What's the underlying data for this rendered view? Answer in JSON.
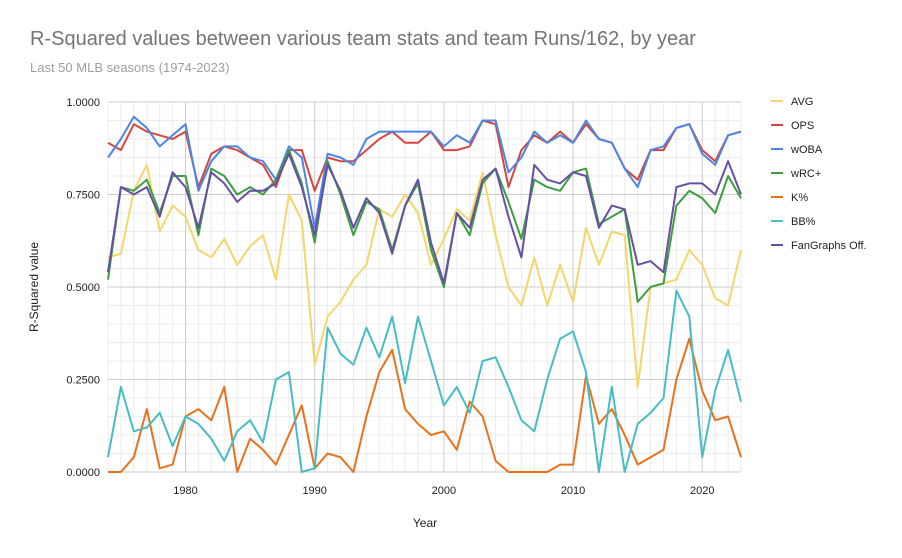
{
  "chart_data": {
    "type": "line",
    "title": "R-Squared values between various team stats and team Runs/162, by year",
    "subtitle": "Last 50 MLB seasons (1974-2023)",
    "xlabel": "Year",
    "ylabel": "R-Squared value",
    "xlim": [
      1974,
      2023
    ],
    "ylim": [
      0,
      1
    ],
    "x_ticks": [
      1980,
      1990,
      2000,
      2010,
      2020
    ],
    "y_ticks": [
      "0.0000",
      "0.2500",
      "0.5000",
      "0.7500",
      "1.0000"
    ],
    "grid": true,
    "legend_position": "right",
    "x": [
      1974,
      1975,
      1976,
      1977,
      1978,
      1979,
      1980,
      1981,
      1982,
      1983,
      1984,
      1985,
      1986,
      1987,
      1988,
      1989,
      1990,
      1991,
      1992,
      1993,
      1994,
      1995,
      1996,
      1997,
      1998,
      1999,
      2000,
      2001,
      2002,
      2003,
      2004,
      2005,
      2006,
      2007,
      2008,
      2009,
      2010,
      2011,
      2012,
      2013,
      2014,
      2015,
      2016,
      2017,
      2018,
      2019,
      2020,
      2021,
      2022,
      2023
    ],
    "series": [
      {
        "name": "AVG",
        "color": "#f4d66a",
        "values": [
          0.58,
          0.59,
          0.76,
          0.83,
          0.65,
          0.72,
          0.69,
          0.6,
          0.58,
          0.63,
          0.56,
          0.61,
          0.64,
          0.52,
          0.75,
          0.68,
          0.29,
          0.42,
          0.46,
          0.52,
          0.56,
          0.71,
          0.69,
          0.75,
          0.7,
          0.56,
          0.63,
          0.71,
          0.68,
          0.81,
          0.64,
          0.5,
          0.45,
          0.58,
          0.45,
          0.56,
          0.46,
          0.66,
          0.56,
          0.65,
          0.64,
          0.23,
          0.5,
          0.51,
          0.52,
          0.6,
          0.56,
          0.47,
          0.45,
          0.6
        ]
      },
      {
        "name": "OPS",
        "color": "#d9453d",
        "values": [
          0.89,
          0.87,
          0.94,
          0.92,
          0.91,
          0.9,
          0.92,
          0.77,
          0.86,
          0.88,
          0.87,
          0.85,
          0.83,
          0.77,
          0.87,
          0.87,
          0.76,
          0.85,
          0.84,
          0.84,
          0.87,
          0.9,
          0.92,
          0.89,
          0.89,
          0.92,
          0.87,
          0.87,
          0.88,
          0.95,
          0.94,
          0.77,
          0.87,
          0.91,
          0.89,
          0.92,
          0.89,
          0.94,
          0.9,
          0.89,
          0.82,
          0.79,
          0.87,
          0.87,
          0.93,
          0.94,
          0.87,
          0.84,
          0.91,
          0.92
        ]
      },
      {
        "name": "wOBA",
        "color": "#4a86e8",
        "values": [
          0.85,
          0.9,
          0.96,
          0.93,
          0.88,
          0.91,
          0.94,
          0.76,
          0.84,
          0.88,
          0.88,
          0.85,
          0.84,
          0.79,
          0.88,
          0.85,
          0.66,
          0.86,
          0.85,
          0.83,
          0.9,
          0.92,
          0.92,
          0.92,
          0.92,
          0.92,
          0.88,
          0.91,
          0.89,
          0.95,
          0.95,
          0.81,
          0.85,
          0.92,
          0.89,
          0.91,
          0.89,
          0.95,
          0.9,
          0.89,
          0.82,
          0.77,
          0.87,
          0.88,
          0.93,
          0.94,
          0.86,
          0.83,
          0.91,
          0.92
        ]
      },
      {
        "name": "wRC+",
        "color": "#3c9f40",
        "values": [
          0.52,
          0.77,
          0.76,
          0.79,
          0.7,
          0.8,
          0.8,
          0.64,
          0.82,
          0.8,
          0.75,
          0.77,
          0.75,
          0.79,
          0.87,
          0.78,
          0.62,
          0.84,
          0.75,
          0.64,
          0.73,
          0.71,
          0.6,
          0.72,
          0.78,
          0.6,
          0.5,
          0.7,
          0.64,
          0.78,
          0.82,
          0.73,
          0.63,
          0.79,
          0.77,
          0.76,
          0.81,
          0.82,
          0.67,
          0.69,
          0.71,
          0.46,
          0.5,
          0.51,
          0.72,
          0.76,
          0.74,
          0.7,
          0.8,
          0.74
        ]
      },
      {
        "name": "K%",
        "color": "#e8711a",
        "values": [
          0.0,
          0.0,
          0.04,
          0.17,
          0.01,
          0.02,
          0.15,
          0.17,
          0.14,
          0.23,
          0.0,
          0.09,
          0.06,
          0.02,
          0.1,
          0.18,
          0.01,
          0.05,
          0.04,
          0.0,
          0.15,
          0.27,
          0.33,
          0.17,
          0.13,
          0.1,
          0.11,
          0.06,
          0.19,
          0.15,
          0.03,
          0.0,
          0.0,
          0.0,
          0.0,
          0.02,
          0.02,
          0.26,
          0.13,
          0.17,
          0.1,
          0.02,
          0.04,
          0.06,
          0.25,
          0.36,
          0.22,
          0.14,
          0.15,
          0.04
        ]
      },
      {
        "name": "BB%",
        "color": "#46bdc6",
        "values": [
          0.04,
          0.23,
          0.11,
          0.12,
          0.16,
          0.07,
          0.15,
          0.13,
          0.09,
          0.03,
          0.11,
          0.14,
          0.08,
          0.25,
          0.27,
          0.0,
          0.01,
          0.39,
          0.32,
          0.29,
          0.39,
          0.31,
          0.42,
          0.24,
          0.42,
          0.3,
          0.18,
          0.23,
          0.16,
          0.3,
          0.31,
          0.23,
          0.14,
          0.11,
          0.25,
          0.36,
          0.38,
          0.27,
          0.0,
          0.23,
          0.0,
          0.13,
          0.16,
          0.2,
          0.49,
          0.42,
          0.04,
          0.22,
          0.33,
          0.19
        ]
      },
      {
        "name": "FanGraphs Off.",
        "color": "#674ea7",
        "values": [
          0.54,
          0.77,
          0.75,
          0.77,
          0.69,
          0.81,
          0.77,
          0.66,
          0.81,
          0.78,
          0.73,
          0.76,
          0.76,
          0.78,
          0.86,
          0.77,
          0.64,
          0.83,
          0.76,
          0.66,
          0.74,
          0.7,
          0.59,
          0.72,
          0.79,
          0.62,
          0.51,
          0.7,
          0.66,
          0.79,
          0.82,
          0.69,
          0.58,
          0.83,
          0.79,
          0.78,
          0.81,
          0.8,
          0.66,
          0.72,
          0.71,
          0.56,
          0.57,
          0.54,
          0.77,
          0.78,
          0.78,
          0.75,
          0.84,
          0.75
        ]
      }
    ]
  }
}
